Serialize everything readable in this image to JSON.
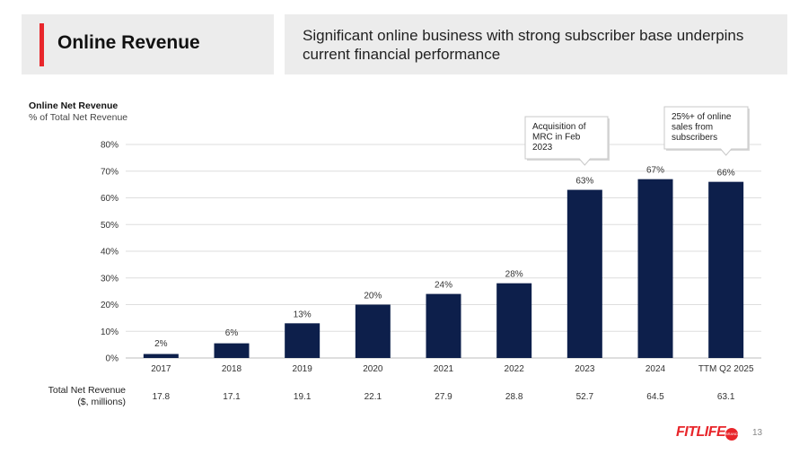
{
  "header": {
    "title": "Online Revenue",
    "subtitle": "Significant online business with strong subscriber base underpins current financial performance"
  },
  "chart_head": {
    "title": "Online Net Revenue",
    "subtitle": "% of Total Net Revenue"
  },
  "revenue_row": {
    "label_line1": "Total Net Revenue",
    "label_line2": "($, millions)"
  },
  "annotations": [
    {
      "text": [
        "Acquisition of",
        "MRC in Feb",
        "2023"
      ],
      "category": "2023"
    },
    {
      "text": [
        "25%+ of online",
        "sales from",
        "subscribers"
      ],
      "category": "TTM Q2 2025"
    }
  ],
  "chart_data": {
    "type": "bar",
    "title": "Online Net Revenue",
    "ylabel": "% of Total Net Revenue",
    "categories": [
      "2017",
      "2018",
      "2019",
      "2020",
      "2021",
      "2022",
      "2023",
      "2024",
      "TTM Q2 2025"
    ],
    "values": [
      2,
      6,
      13,
      20,
      24,
      28,
      63,
      67,
      66
    ],
    "data_labels": [
      "2%",
      "6%",
      "13%",
      "20%",
      "24%",
      "28%",
      "63%",
      "67%",
      "66%"
    ],
    "plotted_values": [
      1.5,
      5.5,
      13,
      20,
      24,
      28,
      63,
      67,
      66
    ],
    "yticks": [
      "0%",
      "10%",
      "20%",
      "30%",
      "40%",
      "50%",
      "60%",
      "70%",
      "80%"
    ],
    "ylim": [
      0,
      80
    ],
    "grid": true,
    "total_net_revenue": [
      "17.8",
      "17.1",
      "19.1",
      "22.1",
      "27.9",
      "28.8",
      "52.7",
      "64.5",
      "63.1"
    ],
    "bar_color": "#0d1f4b"
  },
  "footer": {
    "logo": "FITLIFE",
    "logo_badge": "BRANDS",
    "page_number": "13"
  }
}
